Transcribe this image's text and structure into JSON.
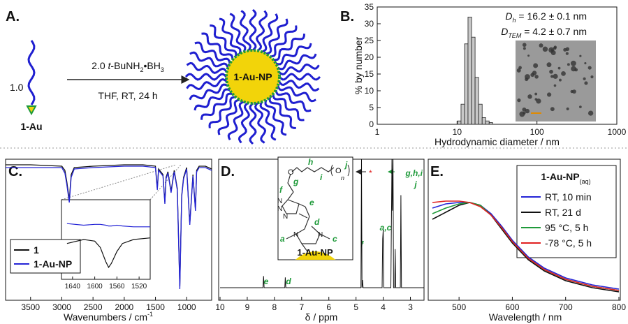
{
  "panel_a": {
    "label": "A.",
    "ratio": "1.0",
    "reactant": "1-Au",
    "reagent_parts": [
      "2.0 ",
      "t",
      "-BuNH",
      "2",
      "•BH",
      "3"
    ],
    "conditions": "THF, RT, 24 h",
    "product": "1-Au-NP"
  },
  "panel_b": {
    "label": "B.",
    "type": "histogram",
    "xlabel": "Hydrodynamic diameter / nm",
    "ylabel": "% by number",
    "log_x": true,
    "xlim": [
      1,
      1000
    ],
    "xticks": [
      1,
      10,
      100,
      1000
    ],
    "ylim": [
      0,
      35
    ],
    "yticks": [
      0,
      5,
      10,
      15,
      20,
      25,
      30,
      35
    ],
    "bins": [
      10.1,
      11.2,
      12.4,
      13.7,
      15.2,
      16.8,
      18.6,
      20.6,
      22.8,
      25.2,
      27.9
    ],
    "counts": [
      1,
      6,
      24,
      32,
      26,
      14,
      6,
      2,
      1,
      0.5
    ],
    "color": "#c8c8c8",
    "dh_parts": [
      "D",
      "h",
      " = 16.2 ± 0.1 nm"
    ],
    "dtem_parts": [
      "D",
      "TEM",
      " = 4.2 ± 0.7 nm"
    ]
  },
  "panel_c": {
    "label": "C.",
    "type": "line",
    "xlabel_parts": [
      "Wavenumbers / cm",
      "-1"
    ],
    "xlim": [
      3900,
      600
    ],
    "xticks": [
      3500,
      3000,
      2500,
      2000,
      1500,
      1000
    ],
    "ylim": [
      0,
      100
    ],
    "x": [
      3900,
      3500,
      3000,
      2950,
      2920,
      2880,
      2850,
      2800,
      2500,
      2000,
      1700,
      1500,
      1470,
      1450,
      1380,
      1350,
      1330,
      1300,
      1250,
      1200,
      1150,
      1110,
      1080,
      1050,
      1000,
      950,
      900,
      860,
      840,
      800,
      700,
      600
    ],
    "series": [
      {
        "name": "1",
        "color": "#111111",
        "values": [
          97,
          97,
          96,
          93,
          85,
          72,
          90,
          95,
          96,
          97,
          97,
          96,
          80,
          94,
          90,
          70,
          88,
          92,
          78,
          93,
          80,
          10,
          75,
          88,
          95,
          55,
          90,
          65,
          93,
          96,
          96,
          94
        ]
      },
      {
        "name": "1-Au-NP",
        "color": "#2424d6",
        "values": [
          95,
          95,
          95,
          91,
          83,
          70,
          88,
          94,
          95,
          96,
          96,
          95,
          79,
          93,
          89,
          69,
          87,
          91,
          77,
          92,
          79,
          8,
          74,
          87,
          94,
          54,
          89,
          64,
          92,
          95,
          95,
          93
        ]
      }
    ],
    "inset": {
      "xlim": [
        1660,
        1500
      ],
      "xticks": [
        1640,
        1600,
        1560,
        1520
      ],
      "ylim": [
        0,
        100
      ],
      "x": [
        1650,
        1620,
        1600,
        1590,
        1580,
        1575,
        1570,
        1560,
        1550,
        1530,
        1500
      ],
      "series": [
        {
          "color": "#111111",
          "values": [
            45,
            50,
            48,
            40,
            22,
            15,
            20,
            35,
            45,
            50,
            52
          ]
        },
        {
          "color": "#2424d6",
          "values": [
            70,
            68,
            69,
            69,
            68,
            67,
            67,
            68,
            67,
            66,
            66
          ]
        }
      ]
    }
  },
  "panel_d": {
    "label": "D.",
    "type": "line",
    "xlabel": "δ / ppm",
    "xlim": [
      10,
      2.5
    ],
    "xticks": [
      10,
      9,
      8,
      7,
      6,
      5,
      4,
      3
    ],
    "ylim": [
      0,
      100
    ],
    "x": [
      10,
      8.42,
      8.4,
      8.38,
      7.62,
      7.6,
      7.58,
      4.82,
      4.8,
      4.78,
      4.76,
      4.74,
      4.72,
      4.04,
      4.02,
      4.0,
      3.98,
      3.72,
      3.68,
      3.66,
      3.64,
      3.62,
      3.58,
      3.56,
      3.54,
      3.4,
      3.37,
      3.35,
      3.33,
      2.5
    ],
    "values": [
      0,
      0,
      9,
      0,
      0,
      8,
      0,
      0,
      100,
      0,
      6,
      0,
      0,
      0,
      38,
      45,
      0,
      0,
      100,
      60,
      100,
      0,
      0,
      30,
      0,
      0,
      0,
      72,
      0,
      0
    ],
    "color": "#111111",
    "peak_labels": [
      "e",
      "d",
      "f",
      "a,c",
      "j",
      "g,h,i",
      "*"
    ],
    "structure_labels": [
      "f",
      "g",
      "h",
      "i",
      "j",
      "n",
      "e",
      "d",
      "a",
      "c"
    ],
    "structure_atoms": [
      "O",
      "O",
      "N",
      "N",
      "N",
      "N",
      "N"
    ],
    "structure_name": "1-Au-NP"
  },
  "panel_e": {
    "label": "E.",
    "type": "line",
    "xlabel": "Wavelength / nm",
    "xlim": [
      450,
      800
    ],
    "xticks": [
      500,
      600,
      700,
      800
    ],
    "ylim": [
      0,
      1
    ],
    "legend_title_parts": [
      "1-Au-NP",
      "(aq)"
    ],
    "x": [
      450,
      475,
      500,
      520,
      540,
      560,
      580,
      600,
      630,
      660,
      700,
      750,
      800
    ],
    "series": [
      {
        "name": "RT, 10 min",
        "color": "#2424d6",
        "values": [
          0.66,
          0.69,
          0.7,
          0.7,
          0.68,
          0.62,
          0.53,
          0.43,
          0.31,
          0.23,
          0.16,
          0.11,
          0.08
        ]
      },
      {
        "name": "RT, 21 d",
        "color": "#111111",
        "values": [
          0.58,
          0.63,
          0.68,
          0.7,
          0.68,
          0.61,
          0.51,
          0.41,
          0.29,
          0.21,
          0.14,
          0.09,
          0.06
        ]
      },
      {
        "name": "95 °C, 5 h",
        "color": "#1f9a3a",
        "values": [
          0.62,
          0.66,
          0.69,
          0.7,
          0.68,
          0.61,
          0.52,
          0.42,
          0.3,
          0.22,
          0.15,
          0.1,
          0.07
        ]
      },
      {
        "name": "-78 °C, 5 h",
        "color": "#e02020",
        "values": [
          0.7,
          0.71,
          0.71,
          0.7,
          0.67,
          0.61,
          0.52,
          0.42,
          0.3,
          0.22,
          0.15,
          0.1,
          0.07
        ]
      }
    ]
  }
}
